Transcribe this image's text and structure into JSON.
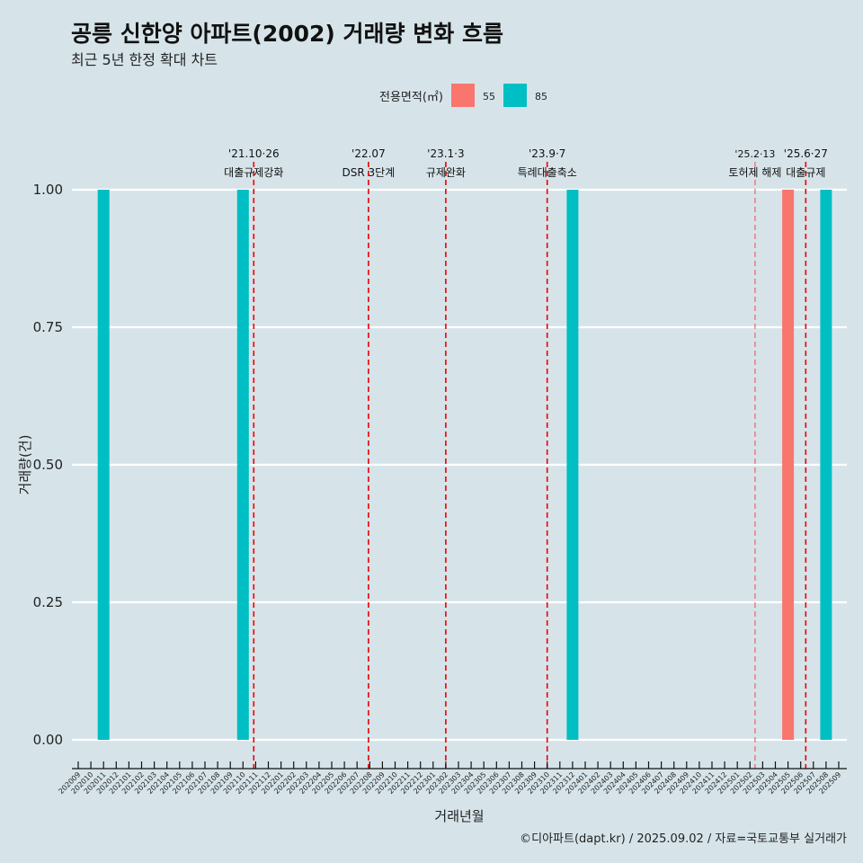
{
  "title": "공릉 신한양 아파트(2002) 거래량 변화 흐름",
  "subtitle": "최근 5년 한정 확대 차트",
  "caption": "©디아파트(dapt.kr) / 2025.09.02 / 자료=국토교통부 실거래가",
  "chart_data": {
    "type": "bar",
    "xlabel": "거래년월",
    "ylabel": "거래량(건)",
    "ylim": [
      0,
      1
    ],
    "yticks": [
      "0.00",
      "0.25",
      "0.50",
      "0.75",
      "1.00"
    ],
    "legend": {
      "title": "전용면적(㎡)",
      "position": "top",
      "entries": [
        {
          "name": "55",
          "color": "#f8766d"
        },
        {
          "name": "85",
          "color": "#00bfc4"
        }
      ]
    },
    "categories": [
      "202009",
      "202010",
      "202011",
      "202012",
      "202101",
      "202102",
      "202103",
      "202104",
      "202105",
      "202106",
      "202107",
      "202108",
      "202109",
      "202110",
      "202111",
      "202112",
      "202201",
      "202202",
      "202203",
      "202204",
      "202205",
      "202206",
      "202207",
      "202208",
      "202209",
      "202210",
      "202211",
      "202212",
      "202301",
      "202302",
      "202303",
      "202304",
      "202305",
      "202306",
      "202307",
      "202308",
      "202309",
      "202310",
      "202311",
      "202312",
      "202401",
      "202402",
      "202403",
      "202404",
      "202405",
      "202406",
      "202407",
      "202408",
      "202409",
      "202410",
      "202411",
      "202412",
      "202501",
      "202502",
      "202503",
      "202504",
      "202505",
      "202506",
      "202507",
      "202508",
      "202509"
    ],
    "bars": [
      {
        "month": "202011",
        "series": "85",
        "value": 1
      },
      {
        "month": "202110",
        "series": "85",
        "value": 1
      },
      {
        "month": "202312",
        "series": "85",
        "value": 1
      },
      {
        "month": "202505",
        "series": "55",
        "value": 1
      },
      {
        "month": "202508",
        "series": "85",
        "value": 1
      }
    ],
    "annotations": [
      {
        "pos": 13.85,
        "date": "'21.10·26",
        "label": "대출규제강화",
        "style": "main"
      },
      {
        "pos": 22.9,
        "date": "'22.07",
        "label": "DSR 3단계",
        "style": "main"
      },
      {
        "pos": 29.0,
        "date": "'23.1·3",
        "label": "규제완화",
        "style": "main"
      },
      {
        "pos": 37.0,
        "date": "'23.9·7",
        "label": "특례대출축소",
        "style": "main"
      },
      {
        "pos": 53.4,
        "date": "'25.2·13",
        "label": "토허제 해제",
        "style": "minor"
      },
      {
        "pos": 57.4,
        "date": "'25.6·27",
        "label": "대출규제",
        "style": "main"
      }
    ]
  }
}
